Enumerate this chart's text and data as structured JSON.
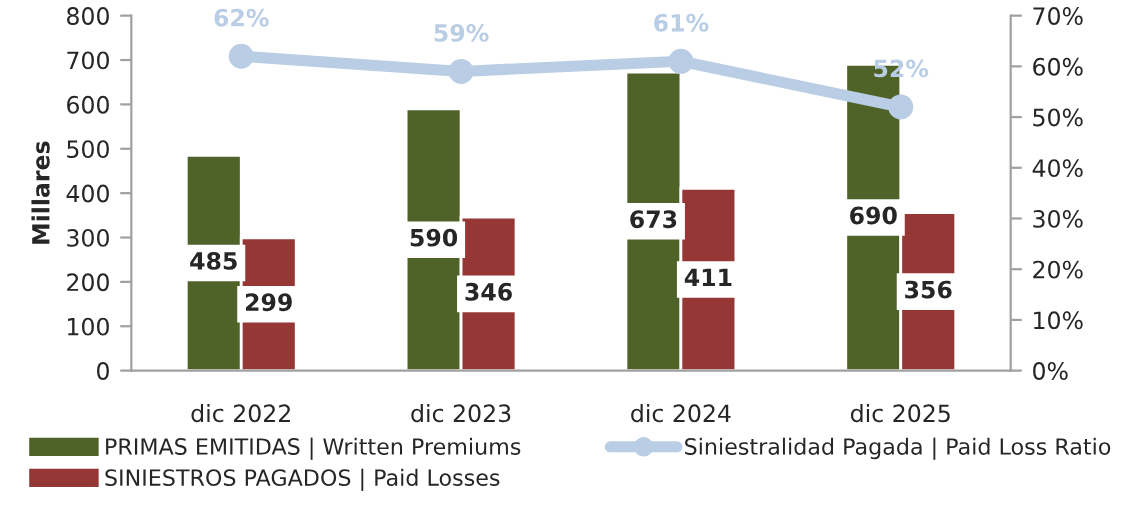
{
  "chart_data": {
    "type": "bar",
    "ylabel": "Millares",
    "categories": [
      "dic 2022",
      "dic 2023",
      "dic 2024",
      "dic 2025"
    ],
    "series": [
      {
        "name": "PRIMAS EMITIDAS | Written Premiums",
        "color": "#4f6228",
        "values": [
          485,
          590,
          673,
          690
        ]
      },
      {
        "name": "SINIESTROS PAGADOS | Paid Losses",
        "color": "#953735",
        "values": [
          299,
          346,
          411,
          356
        ]
      },
      {
        "name": "Siniestralidad Pagada | Paid Loss Ratio",
        "type": "line",
        "axis": "y2",
        "color": "#b9cde5",
        "marker": "circle",
        "values": [
          62,
          59,
          61,
          52
        ],
        "value_labels": [
          "62%",
          "59%",
          "61%",
          "52%"
        ]
      }
    ],
    "ylim": [
      0,
      800
    ],
    "yticks": [
      0,
      100,
      200,
      300,
      400,
      500,
      600,
      700,
      800
    ],
    "y2lim": [
      0,
      70
    ],
    "y2ticks": [
      {
        "value": 0,
        "label": "0%"
      },
      {
        "value": 10,
        "label": "10%"
      },
      {
        "value": 20,
        "label": "20%"
      },
      {
        "value": 30,
        "label": "30%"
      },
      {
        "value": 40,
        "label": "40%"
      },
      {
        "value": 50,
        "label": "50%"
      },
      {
        "value": 60,
        "label": "60%"
      },
      {
        "value": 70,
        "label": "70%"
      }
    ],
    "data_labels": true,
    "grid": false,
    "legend": "bottom"
  }
}
